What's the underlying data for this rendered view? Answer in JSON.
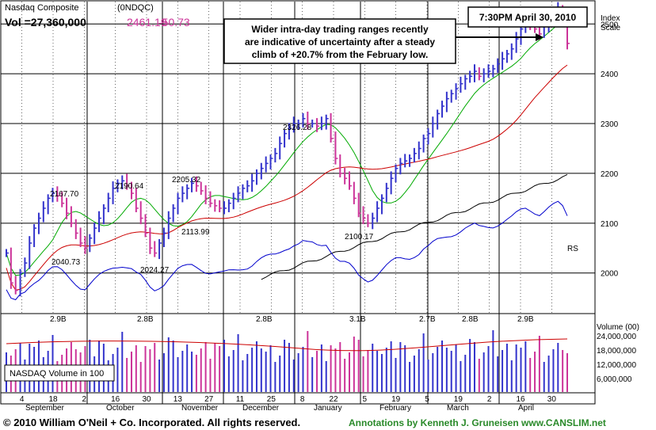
{
  "header": {
    "index_name": "Nasdaq Composite",
    "symbol": "(0NDQC)",
    "volume": "Vol =27,360,000",
    "price": "2461.19",
    "change": "-50.73",
    "date": "7:30PM April 30, 2010",
    "scale_label_1": "Index",
    "scale_label_2": "Scale"
  },
  "annotation": {
    "line1": "Wider intra-day trading ranges recently",
    "line2": "are indicative of uncertainty after a steady",
    "line3": "climb of +20.7% from the February low."
  },
  "footer": {
    "copyright": "© 2010 William O'Neil + Co. Incorporated. All rights reserved.",
    "credit": "Annotations by Kenneth J. Gruneisen www.CANSLIM.net"
  },
  "volume_panel": {
    "label": "NASDAQ Volume in 100",
    "title": "Volume (00)",
    "axis_labels": [
      "24,000,000",
      "18,000,000",
      "12,000,000",
      "6,000,000"
    ]
  },
  "rs_label": "RS",
  "colors": {
    "up": "#3333cc",
    "down": "#cc3399",
    "ma50": "#00aa00",
    "ma200": "#cc0000",
    "rs": "#0000cc",
    "long_ma": "#000000",
    "footer_credit": "#2a8a2a"
  },
  "chart_data": {
    "type": "line",
    "title": "Nasdaq Composite",
    "x_tick_labels": [
      "4",
      "18",
      "2",
      "16",
      "30",
      "13",
      "27",
      "11",
      "25",
      "8",
      "22",
      "5",
      "19",
      "5",
      "19",
      "2",
      "16",
      "30"
    ],
    "month_labels": [
      "September",
      "October",
      "November",
      "December",
      "January",
      "February",
      "March",
      "April"
    ],
    "y_ticks": [
      2000,
      2100,
      2200,
      2300,
      2400,
      2500
    ],
    "ylim": [
      1920,
      2545
    ],
    "price_annotations": [
      {
        "label": "2167.70",
        "value": 2167.7
      },
      {
        "label": "2040.73",
        "value": 2040.73
      },
      {
        "label": "2190.64",
        "value": 2190.64
      },
      {
        "label": "2024.27",
        "value": 2024.27
      },
      {
        "label": "2205.32",
        "value": 2205.32
      },
      {
        "label": "2113.99",
        "value": 2113.99
      },
      {
        "label": "2326.28",
        "value": 2326.28
      },
      {
        "label": "2100.17",
        "value": 2100.17
      }
    ],
    "volume_annotations": [
      "2.9B",
      "2.8B",
      "2.8B",
      "3.1B",
      "2.7B",
      "2.8B",
      "2.9B"
    ],
    "series": [
      {
        "name": "Nasdaq Composite",
        "values": [
          2040,
          1980,
          1965,
          2000,
          2020,
          2060,
          2090,
          2110,
          2130,
          2150,
          2160,
          2155,
          2140,
          2120,
          2100,
          2080,
          2060,
          2050,
          2070,
          2090,
          2110,
          2130,
          2150,
          2170,
          2180,
          2185,
          2175,
          2160,
          2130,
          2110,
          2080,
          2050,
          2040,
          2060,
          2080,
          2110,
          2130,
          2150,
          2160,
          2170,
          2180,
          2175,
          2165,
          2150,
          2140,
          2135,
          2130,
          2130,
          2140,
          2150,
          2160,
          2170,
          2175,
          2185,
          2200,
          2210,
          2220,
          2230,
          2240,
          2260,
          2280,
          2290,
          2300,
          2300,
          2310,
          2300,
          2300,
          2295,
          2300,
          2310,
          2270,
          2230,
          2200,
          2190,
          2175,
          2150,
          2120,
          2110,
          2100,
          2110,
          2130,
          2150,
          2170,
          2190,
          2210,
          2220,
          2225,
          2230,
          2240,
          2250,
          2270,
          2280,
          2300,
          2320,
          2335,
          2350,
          2360,
          2370,
          2380,
          2390,
          2395,
          2405,
          2395,
          2400,
          2405,
          2410,
          2420,
          2430,
          2440,
          2450,
          2470,
          2490,
          2505,
          2500,
          2490,
          2480,
          2495,
          2510,
          2520,
          2530,
          2510,
          2461
        ]
      }
    ]
  }
}
